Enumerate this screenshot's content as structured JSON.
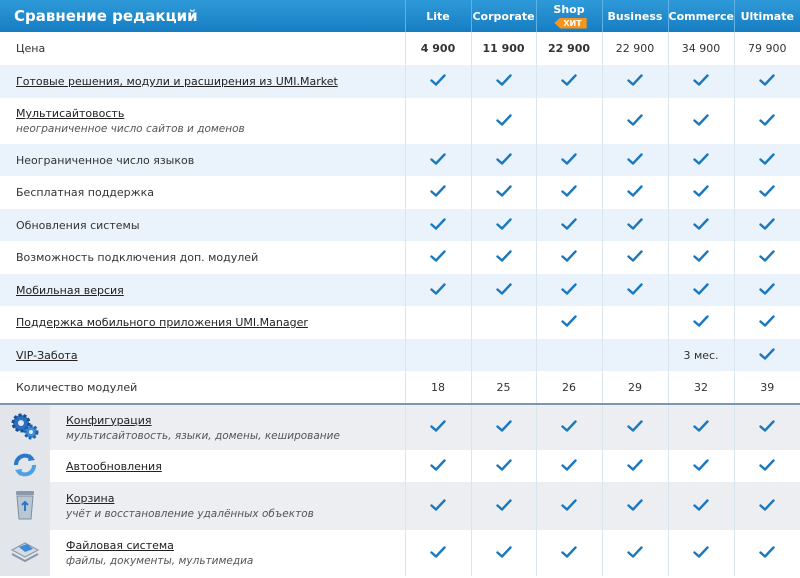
{
  "header": {
    "title": "Сравнение редакций",
    "columns": [
      {
        "name": "Lite"
      },
      {
        "name": "Corporate"
      },
      {
        "name": "Shop",
        "badge": "ХИТ"
      },
      {
        "name": "Business"
      },
      {
        "name": "Commerce"
      },
      {
        "name": "Ultimate"
      }
    ]
  },
  "rows": [
    {
      "label": "Цена",
      "cells": [
        "4 900",
        "11 900",
        "22 900",
        "22 900",
        "34 900",
        "79 900"
      ]
    },
    {
      "label": "Готовые решения, модули и расширения из UMI.Market",
      "link": true,
      "cells": [
        true,
        true,
        true,
        true,
        true,
        true
      ]
    },
    {
      "label": "Мультисайтовость",
      "link": true,
      "note": "неограниченное число сайтов и доменов",
      "cells": [
        false,
        true,
        false,
        true,
        true,
        true
      ]
    },
    {
      "label": "Неограниченное число языков",
      "cells": [
        true,
        true,
        true,
        true,
        true,
        true
      ]
    },
    {
      "label": "Бесплатная поддержка",
      "cells": [
        true,
        true,
        true,
        true,
        true,
        true
      ]
    },
    {
      "label": "Обновления системы",
      "cells": [
        true,
        true,
        true,
        true,
        true,
        true
      ]
    },
    {
      "label": "Возможность подключения доп. модулей",
      "cells": [
        true,
        true,
        true,
        true,
        true,
        true
      ]
    },
    {
      "label": "Мобильная версия",
      "link": true,
      "cells": [
        true,
        true,
        true,
        true,
        true,
        true
      ]
    },
    {
      "label": "Поддержка мобильного приложения UMI.Manager",
      "link": true,
      "cells": [
        false,
        false,
        true,
        false,
        true,
        true
      ]
    },
    {
      "label": "VIP-Забота",
      "link": true,
      "cells": [
        false,
        false,
        false,
        false,
        "3 мес.",
        true
      ]
    },
    {
      "label": "Количество модулей",
      "cells": [
        18,
        25,
        26,
        29,
        32,
        39
      ]
    }
  ],
  "features": [
    {
      "label": "Конфигурация",
      "note": "мультисайтовость, языки, домены, кеширование",
      "cells": [
        true,
        true,
        true,
        true,
        true,
        true
      ]
    },
    {
      "label": "Автообновления",
      "cells": [
        true,
        true,
        true,
        true,
        true,
        true
      ]
    },
    {
      "label": "Корзина",
      "note": "учёт и восстановление удалённых объектов",
      "cells": [
        true,
        true,
        true,
        true,
        true,
        true
      ]
    },
    {
      "label": "Файловая система",
      "note": "файлы, документы, мультимедиа",
      "cells": [
        true,
        true,
        true,
        true,
        true,
        true
      ]
    }
  ]
}
